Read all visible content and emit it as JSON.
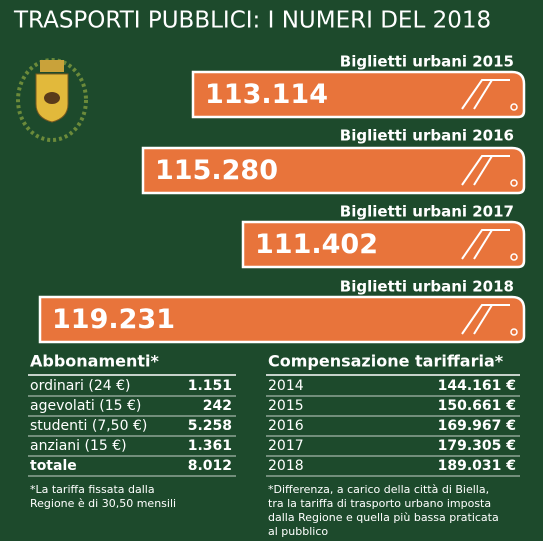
{
  "title": "TRASPORTI PUBBLICI: I NUMERI DEL 2018",
  "buses": [
    {
      "label": "Biglietti urbani 2015",
      "value": "113.114"
    },
    {
      "label": "Biglietti urbani 2016",
      "value": "115.280"
    },
    {
      "label": "Biglietti urbani 2017",
      "value": "111.402"
    },
    {
      "label": "Biglietti urbani 2018",
      "value": "119.231"
    }
  ],
  "subscriptions": {
    "title": "Abbonamenti*",
    "rows": [
      [
        "ordinari (24 €)",
        "1.151"
      ],
      [
        "agevolati (15 €)",
        "242"
      ],
      [
        "studenti (7,50 €)",
        "5.258"
      ],
      [
        "anziani (15 €)",
        "1.361"
      ],
      [
        "totale",
        "8.012"
      ]
    ],
    "note": "*La tariffa fissata dalla Regione è di 30,50 mensili"
  },
  "compensation": {
    "title": "Compensazione tariffaria*",
    "rows": [
      [
        "2014",
        "144.161 €"
      ],
      [
        "2015",
        "150.661 €"
      ],
      [
        "2016",
        "169.967 €"
      ],
      [
        "2017",
        "179.305 €"
      ],
      [
        "2018",
        "189.031 €"
      ]
    ],
    "note": "*Differenza, a carico della città di Biella, tra la tariffa di trasporto urbano imposta dalla Regione e quella più bassa praticata al pubblico"
  }
}
